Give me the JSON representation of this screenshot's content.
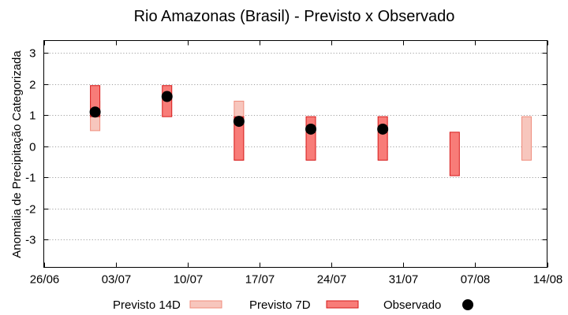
{
  "chart_data": {
    "type": "range-bar",
    "title": "Rio Amazonas (Brasil) - Previsto x Observado",
    "xlabel": "",
    "ylabel": "Anomalia de Precipitação Categorizada",
    "ylim": [
      -3.9,
      3.4
    ],
    "yticks": [
      -3,
      -2,
      -1,
      0,
      1,
      2,
      3
    ],
    "xlim_days": [
      0,
      49
    ],
    "xticks": [
      {
        "day": 0,
        "label": "26/06"
      },
      {
        "day": 7,
        "label": "03/07"
      },
      {
        "day": 14,
        "label": "10/07"
      },
      {
        "day": 21,
        "label": "17/07"
      },
      {
        "day": 28,
        "label": "24/07"
      },
      {
        "day": 35,
        "label": "31/07"
      },
      {
        "day": 42,
        "label": "07/08"
      },
      {
        "day": 49,
        "label": "14/08"
      }
    ],
    "grid": true,
    "legend_position": "bottom",
    "series": [
      {
        "name": "Previsto 14D",
        "kind": "range",
        "color": "#f7c6bd",
        "stroke": "#f08c7c",
        "points": [
          {
            "day": 5,
            "low": 0.5,
            "high": 1.45
          },
          {
            "day": 19,
            "low": -0.45,
            "high": 1.45
          },
          {
            "day": 47,
            "low": -0.45,
            "high": 0.95
          }
        ]
      },
      {
        "name": "Previsto 7D",
        "kind": "range",
        "color": "#f87c78",
        "stroke": "#d61a1a",
        "points": [
          {
            "day": 5,
            "low": 0.95,
            "high": 1.95
          },
          {
            "day": 12,
            "low": 0.95,
            "high": 1.95
          },
          {
            "day": 19,
            "low": -0.45,
            "high": 0.95
          },
          {
            "day": 26,
            "low": -0.45,
            "high": 0.95
          },
          {
            "day": 33,
            "low": -0.45,
            "high": 0.95
          },
          {
            "day": 40,
            "low": -0.95,
            "high": 0.45
          }
        ]
      },
      {
        "name": "Observado",
        "kind": "point",
        "color": "#000000",
        "points": [
          {
            "day": 5,
            "value": 1.1
          },
          {
            "day": 12,
            "value": 1.6
          },
          {
            "day": 19,
            "value": 0.8
          },
          {
            "day": 26,
            "value": 0.55
          },
          {
            "day": 33,
            "value": 0.55
          }
        ]
      }
    ]
  }
}
